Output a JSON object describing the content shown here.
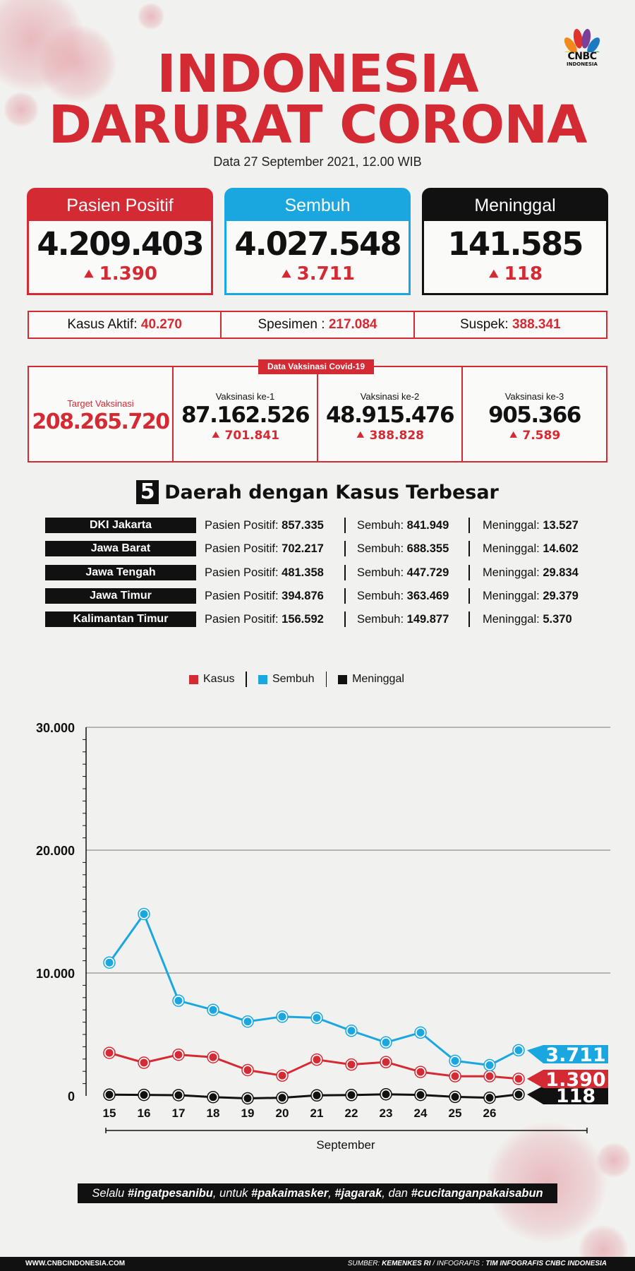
{
  "logo": {
    "name": "CNBC",
    "sub": "INDONESIA"
  },
  "title": {
    "line1": "INDONESIA",
    "line2": "DARURAT CORONA"
  },
  "date": "Data 27 September 2021, 12.00 WIB",
  "cards": [
    {
      "label": "Pasien Positif",
      "value": "4.209.403",
      "increase": "1.390",
      "color": "#d42a34"
    },
    {
      "label": "Sembuh",
      "value": "4.027.548",
      "increase": "3.711",
      "color": "#1aa7e0"
    },
    {
      "label": "Meninggal",
      "value": "141.585",
      "increase": "118",
      "color": "#111111"
    }
  ],
  "info": [
    {
      "label": "Kasus Aktif:",
      "value": "40.270"
    },
    {
      "label": "Spesimen :",
      "value": "217.084"
    },
    {
      "label": "Suspek:",
      "value": "388.341"
    }
  ],
  "vaccination": {
    "tag": "Data Vaksinasi Covid-19",
    "target_label": "Target Vaksinasi",
    "target_value": "208.265.720",
    "doses": [
      {
        "label": "Vaksinasi ke-1",
        "value": "87.162.526",
        "increase": "701.841"
      },
      {
        "label": "Vaksinasi ke-2",
        "value": "48.915.476",
        "increase": "388.828"
      },
      {
        "label": "Vaksinasi ke-3",
        "value": "905.366",
        "increase": "7.589"
      }
    ]
  },
  "regions": {
    "number": "5",
    "title": "Daerah dengan Kasus Terbesar",
    "positive_label": "Pasien Positif:",
    "recovered_label": "Sembuh:",
    "death_label": "Meninggal:",
    "rows": [
      {
        "name": "DKI Jakarta",
        "positive": "857.335",
        "recovered": "841.949",
        "deaths": "13.527"
      },
      {
        "name": "Jawa Barat",
        "positive": "702.217",
        "recovered": "688.355",
        "deaths": "14.602"
      },
      {
        "name": "Jawa Tengah",
        "positive": "481.358",
        "recovered": "447.729",
        "deaths": "29.834"
      },
      {
        "name": "Jawa Timur",
        "positive": "394.876",
        "recovered": "363.469",
        "deaths": "29.379"
      },
      {
        "name": "Kalimantan Timur",
        "positive": "156.592",
        "recovered": "149.877",
        "deaths": "5.370"
      }
    ]
  },
  "chart_data": {
    "type": "line",
    "x": [
      "15",
      "16",
      "17",
      "18",
      "19",
      "20",
      "21",
      "22",
      "23",
      "24",
      "25",
      "26",
      "26"
    ],
    "xlabel": "September",
    "ylim": [
      0,
      30000
    ],
    "yticks": [
      0,
      10000,
      20000,
      30000
    ],
    "yticklabels": [
      "0",
      "10.000",
      "20.000",
      "30.000"
    ],
    "grid": true,
    "legend_position": "top-center",
    "series": [
      {
        "name": "Kasus",
        "color": "#d42a34",
        "values": [
          3500,
          2700,
          3350,
          3150,
          2100,
          1650,
          2950,
          2550,
          2750,
          1950,
          1600,
          1600,
          1390
        ],
        "end_label": "1.390"
      },
      {
        "name": "Sembuh",
        "color": "#1aa7e0",
        "values": [
          10850,
          14800,
          7750,
          7000,
          6050,
          6450,
          6350,
          5300,
          4350,
          5150,
          2850,
          2500,
          3711
        ],
        "end_label": "3.711"
      },
      {
        "name": "Meninggal",
        "color": "#111111",
        "values": [
          100,
          80,
          60,
          -100,
          -200,
          -150,
          40,
          70,
          130,
          80,
          -80,
          -150,
          118
        ],
        "end_label": "118"
      }
    ]
  },
  "slogan": {
    "p1": "Selalu ",
    "h1": "#ingatpesanibu",
    "p2": ", untuk ",
    "h2": "#pakaimasker",
    "p3": ", ",
    "h3": "#jagarak",
    "p4": ", dan ",
    "h4": "#cucitanganpakaisabun"
  },
  "footer": {
    "website": "WWW.CNBCINDONESIA.COM",
    "source_prefix": "SUMBER: ",
    "source": "KEMENKES RI",
    "sep": " / INFOGRAFIS : ",
    "credit": "TIM INFOGRAFIS CNBC INDONESIA"
  }
}
